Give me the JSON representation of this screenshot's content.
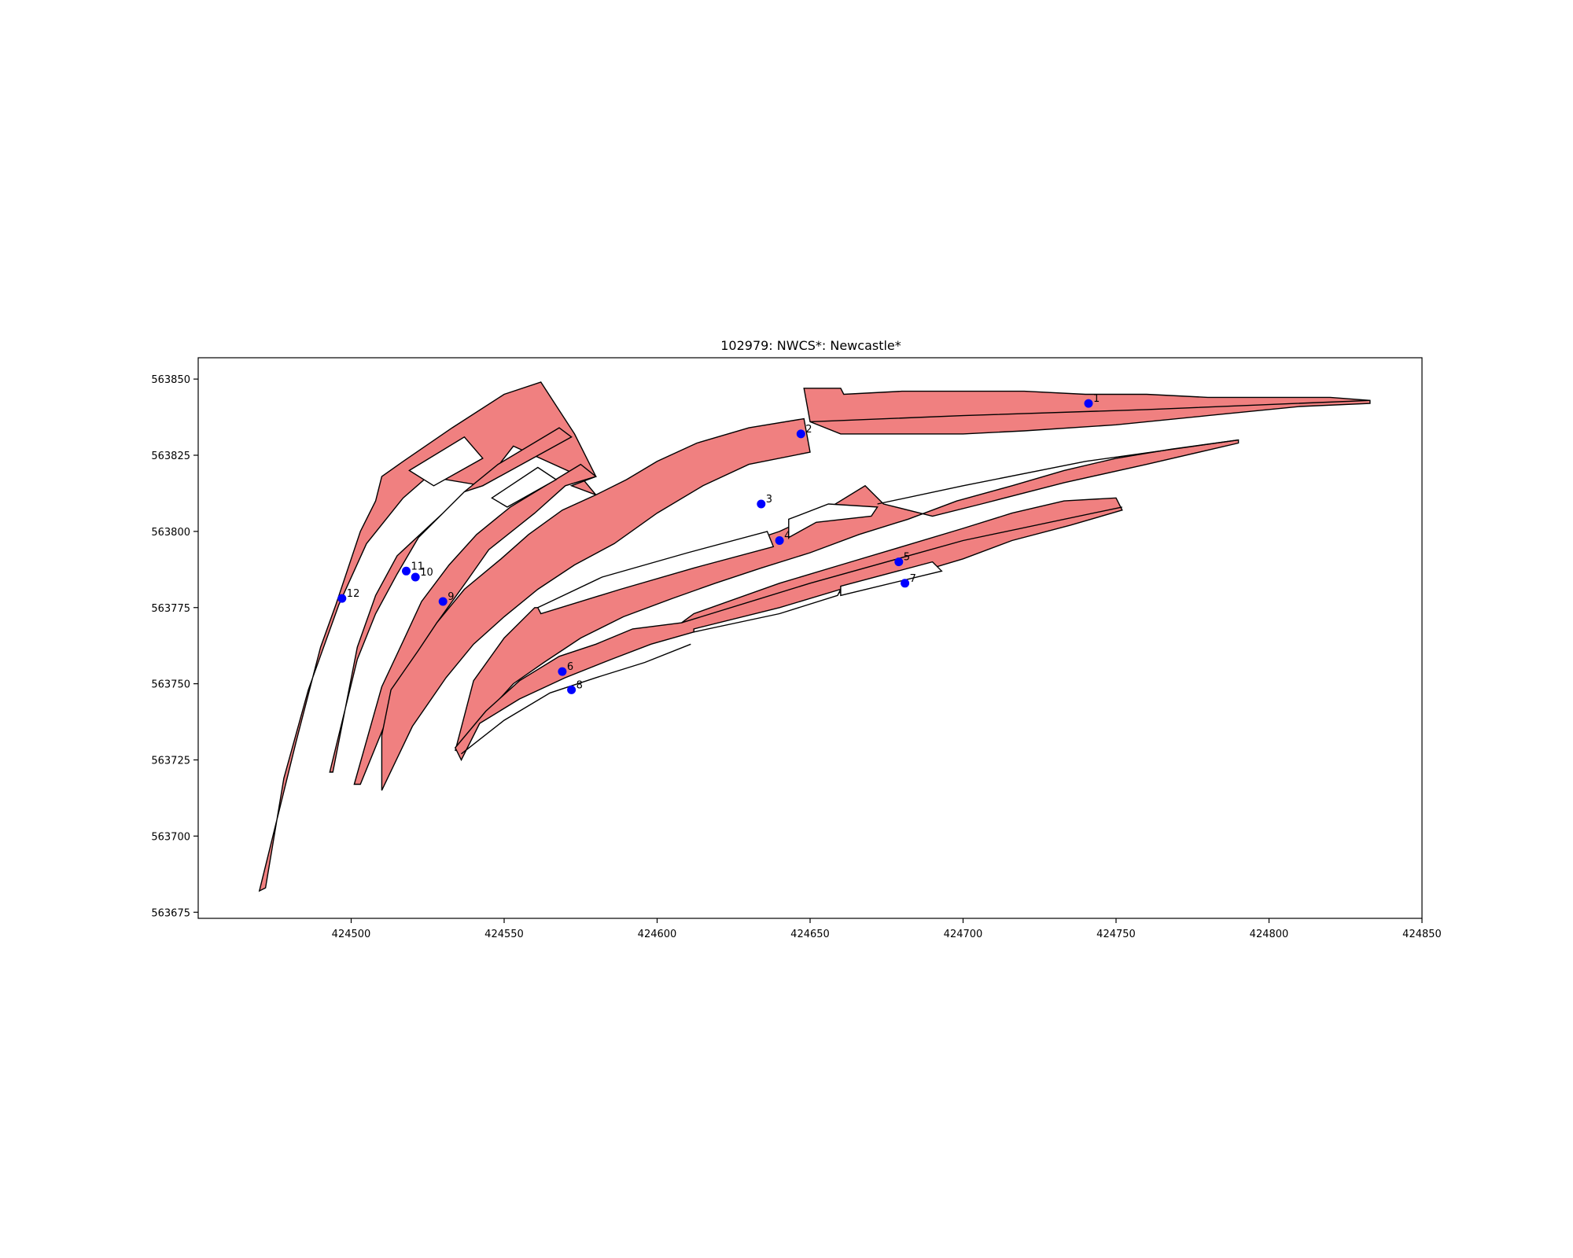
{
  "chart_data": {
    "type": "map",
    "title": "102979: NWCS*: Newcastle*",
    "xlabel": "",
    "ylabel": "",
    "xlim": [
      424450,
      424850
    ],
    "ylim": [
      563673,
      563857
    ],
    "x_ticks": [
      "424500",
      "424550",
      "424600",
      "424650",
      "424700",
      "424750",
      "424800",
      "424850"
    ],
    "y_ticks": [
      "563675",
      "563700",
      "563725",
      "563750",
      "563775",
      "563800",
      "563825",
      "563850"
    ],
    "grid": false,
    "colors": {
      "polygon_fill": "#f08080",
      "polygon_edge": "#000000",
      "point": "#0000ff"
    },
    "polygons": [
      {
        "points": [
          [
            424470,
            563682
          ],
          [
            424482,
            563731
          ],
          [
            424490,
            563762
          ],
          [
            424495,
            563776
          ],
          [
            424503,
            563800
          ],
          [
            424508,
            563810
          ],
          [
            424510,
            563818
          ],
          [
            424517,
            563823
          ],
          [
            424533,
            563834
          ],
          [
            424550,
            563845
          ],
          [
            424562,
            563849
          ],
          [
            424573,
            563832
          ],
          [
            424580,
            563818
          ],
          [
            424572,
            563815
          ],
          [
            424580,
            563812
          ],
          [
            424575,
            563818
          ],
          [
            424553,
            563828
          ],
          [
            424543,
            563815
          ],
          [
            424525,
            563818
          ],
          [
            424517,
            563811
          ],
          [
            424505,
            563796
          ],
          [
            424496,
            563776
          ],
          [
            424486,
            563748
          ],
          [
            424478,
            563719
          ],
          [
            424472,
            563683
          ]
        ]
      },
      {
        "points": [
          [
            424493,
            563721
          ],
          [
            424502,
            563758
          ],
          [
            424508,
            563773
          ],
          [
            424515,
            563786
          ],
          [
            424522,
            563798
          ],
          [
            424530,
            563806
          ],
          [
            424537,
            563813
          ],
          [
            424548,
            563822
          ],
          [
            424568,
            563834
          ],
          [
            424572,
            563831
          ],
          [
            424543,
            563815
          ],
          [
            424537,
            563813
          ],
          [
            424530,
            563806
          ],
          [
            424515,
            563792
          ],
          [
            424508,
            563779
          ],
          [
            424502,
            563762
          ],
          [
            424494,
            563721
          ]
        ]
      },
      {
        "points": [
          [
            424501,
            563717
          ],
          [
            424510,
            563749
          ],
          [
            424517,
            563764
          ],
          [
            424523,
            563777
          ],
          [
            424532,
            563789
          ],
          [
            424541,
            563799
          ],
          [
            424552,
            563808
          ],
          [
            424575,
            563822
          ],
          [
            424580,
            563818
          ],
          [
            424570,
            563815
          ],
          [
            424560,
            563806
          ],
          [
            424545,
            563794
          ],
          [
            424538,
            563784
          ],
          [
            424528,
            563770
          ],
          [
            424516,
            563749
          ],
          [
            424503,
            563717
          ]
        ]
      },
      {
        "points": [
          [
            424510,
            563715
          ],
          [
            424520,
            563736
          ],
          [
            424531,
            563752
          ],
          [
            424540,
            563763
          ],
          [
            424550,
            563772
          ],
          [
            424561,
            563781
          ],
          [
            424573,
            563789
          ],
          [
            424586,
            563796
          ],
          [
            424600,
            563806
          ],
          [
            424615,
            563815
          ],
          [
            424630,
            563822
          ],
          [
            424650,
            563826
          ],
          [
            424648,
            563837
          ],
          [
            424630,
            563834
          ],
          [
            424613,
            563829
          ],
          [
            424600,
            563823
          ],
          [
            424590,
            563817
          ],
          [
            424580,
            563812
          ],
          [
            424569,
            563807
          ],
          [
            424558,
            563799
          ],
          [
            424549,
            563791
          ],
          [
            424537,
            563781
          ],
          [
            424528,
            563770
          ],
          [
            424522,
            563761
          ],
          [
            424513,
            563748
          ],
          [
            424510,
            563733
          ],
          [
            424510,
            563715
          ]
        ]
      },
      {
        "points": [
          [
            424534,
            563728
          ],
          [
            424544,
            563740
          ],
          [
            424553,
            563750
          ],
          [
            424563,
            563757
          ],
          [
            424575,
            563765
          ],
          [
            424589,
            563772
          ],
          [
            424605,
            563778
          ],
          [
            424619,
            563783
          ],
          [
            424634,
            563788
          ],
          [
            424650,
            563793
          ],
          [
            424666,
            563799
          ],
          [
            424682,
            563804
          ],
          [
            424698,
            563810
          ],
          [
            424716,
            563815
          ],
          [
            424733,
            563820
          ],
          [
            424750,
            563824
          ],
          [
            424768,
            563827
          ],
          [
            424790,
            563830
          ],
          [
            424790,
            563829
          ],
          [
            424760,
            563822
          ],
          [
            424733,
            563816
          ],
          [
            424706,
            563809
          ],
          [
            424690,
            563805
          ],
          [
            424674,
            563809
          ],
          [
            424668,
            563815
          ],
          [
            424655,
            563807
          ],
          [
            424640,
            563800
          ],
          [
            424628,
            563796
          ],
          [
            424610,
            563790
          ],
          [
            424595,
            563784
          ],
          [
            424580,
            563779
          ],
          [
            424565,
            563775
          ],
          [
            424560,
            563775
          ],
          [
            424550,
            563765
          ],
          [
            424540,
            563751
          ],
          [
            424534,
            563728
          ]
        ]
      },
      {
        "points": [
          [
            424534,
            563729
          ],
          [
            424544,
            563741
          ],
          [
            424555,
            563751
          ],
          [
            424568,
            563759
          ],
          [
            424580,
            563763
          ],
          [
            424592,
            563768
          ],
          [
            424608,
            563770
          ],
          [
            424612,
            563773
          ],
          [
            424640,
            563783
          ],
          [
            424660,
            563789
          ],
          [
            424680,
            563795
          ],
          [
            424700,
            563801
          ],
          [
            424716,
            563806
          ],
          [
            424733,
            563810
          ],
          [
            424750,
            563811
          ],
          [
            424752,
            563807
          ],
          [
            424735,
            563802
          ],
          [
            424716,
            563797
          ],
          [
            424700,
            563791
          ],
          [
            424680,
            563785
          ],
          [
            424660,
            563780
          ],
          [
            424612,
            563767
          ],
          [
            424598,
            563763
          ],
          [
            424585,
            563758
          ],
          [
            424570,
            563752
          ],
          [
            424555,
            563745
          ],
          [
            424542,
            563737
          ],
          [
            424536,
            563725
          ]
        ]
      },
      {
        "points": [
          [
            424649,
            563847
          ],
          [
            424660,
            563847
          ],
          [
            424661,
            563845
          ],
          [
            424680,
            563846
          ],
          [
            424700,
            563846
          ],
          [
            424720,
            563846
          ],
          [
            424740,
            563845
          ],
          [
            424760,
            563845
          ],
          [
            424780,
            563844
          ],
          [
            424800,
            563844
          ],
          [
            424820,
            563844
          ],
          [
            424833,
            563843
          ],
          [
            424833,
            563842
          ],
          [
            424810,
            563841
          ],
          [
            424780,
            563838
          ],
          [
            424750,
            563835
          ],
          [
            424720,
            563833
          ],
          [
            424700,
            563832
          ],
          [
            424680,
            563832
          ],
          [
            424660,
            563832
          ],
          [
            424650,
            563836
          ],
          [
            424648,
            563847
          ]
        ]
      }
    ],
    "dividers": [
      {
        "points": [
          [
            424650,
            563836
          ],
          [
            424700,
            563838
          ],
          [
            424760,
            563840
          ],
          [
            424833,
            563843
          ]
        ]
      },
      {
        "points": [
          [
            424672,
            563809
          ],
          [
            424700,
            563815
          ],
          [
            424740,
            563823
          ],
          [
            424790,
            563830
          ]
        ]
      },
      {
        "points": [
          [
            424608,
            563770
          ],
          [
            424650,
            563783
          ],
          [
            424700,
            563797
          ],
          [
            424752,
            563808
          ]
        ]
      },
      {
        "points": [
          [
            424536,
            563727
          ],
          [
            424550,
            563738
          ],
          [
            424565,
            563747
          ],
          [
            424580,
            563752
          ],
          [
            424596,
            563757
          ],
          [
            424611,
            563763
          ]
        ]
      }
    ],
    "holes": [
      {
        "points": [
          [
            424519,
            563820
          ],
          [
            424537,
            563831
          ],
          [
            424543,
            563824
          ],
          [
            424527,
            563815
          ]
        ]
      },
      {
        "points": [
          [
            424546,
            563811
          ],
          [
            424561,
            563821
          ],
          [
            424567,
            563817
          ],
          [
            424551,
            563808
          ]
        ]
      },
      {
        "points": [
          [
            424561,
            563775
          ],
          [
            424582,
            563785
          ],
          [
            424610,
            563793
          ],
          [
            424636,
            563800
          ],
          [
            424638,
            563795
          ],
          [
            424612,
            563788
          ],
          [
            424588,
            563781
          ],
          [
            424562,
            563773
          ]
        ]
      },
      {
        "points": [
          [
            424643,
            563798
          ],
          [
            424652,
            563803
          ],
          [
            424670,
            563805
          ],
          [
            424672,
            563808
          ],
          [
            424656,
            563809
          ],
          [
            424643,
            563804
          ]
        ]
      },
      {
        "points": [
          [
            424612,
            563768
          ],
          [
            424640,
            563775
          ],
          [
            424660,
            563781
          ],
          [
            424659,
            563779
          ],
          [
            424640,
            563773
          ],
          [
            424612,
            563767
          ]
        ]
      },
      {
        "points": [
          [
            424660,
            563782
          ],
          [
            424690,
            563790
          ],
          [
            424693,
            563787
          ],
          [
            424660,
            563779
          ]
        ]
      }
    ],
    "points": [
      {
        "label": "1",
        "x": 424741,
        "y": 563842
      },
      {
        "label": "2",
        "x": 424647,
        "y": 563832
      },
      {
        "label": "3",
        "x": 424634,
        "y": 563809
      },
      {
        "label": "4",
        "x": 424640,
        "y": 563797
      },
      {
        "label": "5",
        "x": 424679,
        "y": 563790
      },
      {
        "label": "6",
        "x": 424569,
        "y": 563754
      },
      {
        "label": "7",
        "x": 424681,
        "y": 563783
      },
      {
        "label": "8",
        "x": 424572,
        "y": 563748
      },
      {
        "label": "9",
        "x": 424530,
        "y": 563777
      },
      {
        "label": "10",
        "x": 424521,
        "y": 563785
      },
      {
        "label": "11",
        "x": 424518,
        "y": 563787
      },
      {
        "label": "12",
        "x": 424497,
        "y": 563778
      }
    ]
  }
}
